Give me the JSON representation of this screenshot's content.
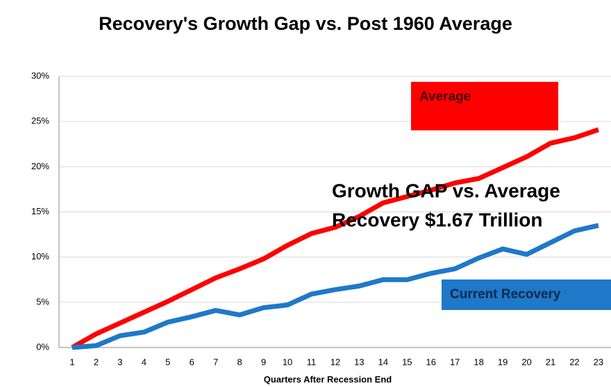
{
  "chart_data": {
    "type": "line",
    "title": "Recovery's Growth Gap vs. Post 1960 Average",
    "x_label": "Quarters After Recession End",
    "categories": [
      "1",
      "2",
      "3",
      "4",
      "5",
      "6",
      "7",
      "8",
      "9",
      "10",
      "11",
      "12",
      "13",
      "14",
      "15",
      "16",
      "17",
      "18",
      "19",
      "20",
      "21",
      "22",
      "23"
    ],
    "series": [
      {
        "name": "Average",
        "color": "#ff0000",
        "values": [
          0,
          1.5,
          2.7,
          3.9,
          5.1,
          6.4,
          7.7,
          8.7,
          9.8,
          11.3,
          12.6,
          13.3,
          14.5,
          16.0,
          16.7,
          17.4,
          18.2,
          18.7,
          19.9,
          21.1,
          22.6,
          23.2,
          24.1
        ]
      },
      {
        "name": "Current Recovery",
        "color": "#1f78c8",
        "values": [
          0,
          0.2,
          1.3,
          1.7,
          2.8,
          3.4,
          4.1,
          3.6,
          4.4,
          4.7,
          5.9,
          6.4,
          6.8,
          7.5,
          7.5,
          8.2,
          8.7,
          9.9,
          10.9,
          10.3,
          11.6,
          12.9,
          13.5
        ]
      }
    ],
    "ylim": [
      0,
      30
    ],
    "yticks": [
      {
        "value": 0,
        "label": "0%"
      },
      {
        "value": 5,
        "label": "5%"
      },
      {
        "value": 10,
        "label": "10%"
      },
      {
        "value": 15,
        "label": "15%"
      },
      {
        "value": 20,
        "label": "20%"
      },
      {
        "value": 25,
        "label": "25%"
      },
      {
        "value": 30,
        "label": "30%"
      }
    ],
    "grid": true,
    "annotations": [
      "Growth GAP vs. Average",
      "Recovery $1.67 Trillion"
    ]
  }
}
